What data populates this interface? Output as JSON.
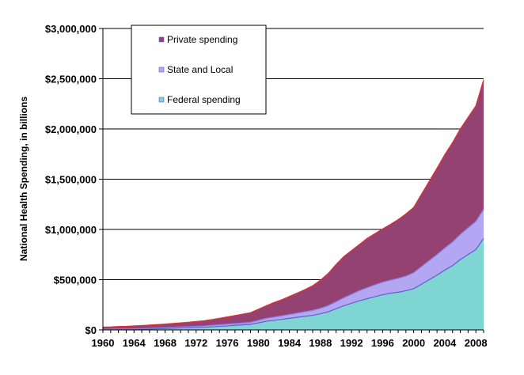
{
  "chart_data": {
    "type": "area",
    "stacked": true,
    "title": "",
    "xlabel": "",
    "ylabel": "National Health Spending, in billions",
    "xlim": [
      1960,
      2009
    ],
    "ylim": [
      0,
      3000000
    ],
    "grid": "horizontal",
    "legend_position": "top-left",
    "y_ticks": [
      "$0",
      "$500,000",
      "$1,000,000",
      "$1,500,000",
      "$2,000,000",
      "$2,500,000",
      "$3,000,000"
    ],
    "y_tick_values": [
      0,
      500000,
      1000000,
      1500000,
      2000000,
      2500000,
      3000000
    ],
    "x_ticks": [
      "1960",
      "1964",
      "1968",
      "1972",
      "1976",
      "1980",
      "1984",
      "1988",
      "1992",
      "1996",
      "2000",
      "2004",
      "2008"
    ],
    "x_tick_values": [
      1960,
      1964,
      1968,
      1972,
      1976,
      1980,
      1984,
      1988,
      1992,
      1996,
      2000,
      2004,
      2008
    ],
    "x": [
      1960,
      1961,
      1962,
      1963,
      1964,
      1965,
      1966,
      1967,
      1968,
      1969,
      1970,
      1971,
      1972,
      1973,
      1974,
      1975,
      1976,
      1977,
      1978,
      1979,
      1980,
      1981,
      1982,
      1983,
      1984,
      1985,
      1986,
      1987,
      1988,
      1989,
      1990,
      1991,
      1992,
      1993,
      1994,
      1995,
      1996,
      1997,
      1998,
      1999,
      2000,
      2001,
      2002,
      2003,
      2004,
      2005,
      2006,
      2007,
      2008,
      2009
    ],
    "series": [
      {
        "name": "Federal spending",
        "color": "#7fd4d4",
        "stroke": "#6a5acd",
        "values": [
          3000,
          3000,
          4000,
          4000,
          5000,
          6000,
          9000,
          12000,
          14000,
          17000,
          19000,
          20000,
          23000,
          25000,
          30000,
          35000,
          40000,
          45000,
          50000,
          55000,
          70000,
          85000,
          95000,
          105000,
          115000,
          125000,
          135000,
          145000,
          160000,
          180000,
          210000,
          240000,
          265000,
          290000,
          310000,
          330000,
          350000,
          365000,
          375000,
          390000,
          410000,
          455000,
          500000,
          545000,
          595000,
          640000,
          700000,
          750000,
          800000,
          910000
        ]
      },
      {
        "name": "State and Local",
        "color": "#b3a6f2",
        "stroke": "#8a7fe0",
        "values": [
          5000,
          5000,
          6000,
          6000,
          6000,
          7000,
          7000,
          8000,
          9000,
          10000,
          11000,
          12000,
          13000,
          14000,
          15000,
          16000,
          17000,
          18000,
          19000,
          21000,
          25000,
          30000,
          32000,
          35000,
          38000,
          42000,
          46000,
          50000,
          55000,
          62000,
          70000,
          80000,
          90000,
          100000,
          110000,
          118000,
          125000,
          130000,
          138000,
          145000,
          160000,
          175000,
          190000,
          205000,
          220000,
          235000,
          250000,
          265000,
          280000,
          290000
        ]
      },
      {
        "name": "Private spending",
        "color": "#944272",
        "stroke": "#e03030",
        "values": [
          20000,
          22000,
          24000,
          26000,
          29000,
          31000,
          32000,
          33000,
          35000,
          37000,
          40000,
          44000,
          48000,
          52000,
          58000,
          64000,
          72000,
          80000,
          88000,
          96000,
          110000,
          125000,
          145000,
          160000,
          180000,
          200000,
          220000,
          245000,
          280000,
          320000,
          370000,
          410000,
          435000,
          460000,
          490000,
          510000,
          530000,
          555000,
          585000,
          620000,
          650000,
          720000,
          790000,
          860000,
          930000,
          990000,
          1050000,
          1100000,
          1150000,
          1290000
        ]
      }
    ]
  }
}
